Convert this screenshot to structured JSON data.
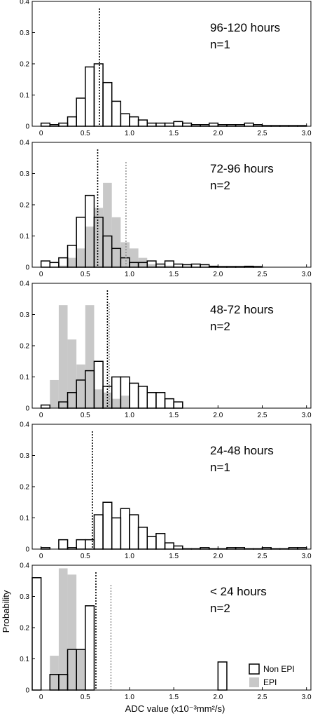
{
  "chart_data": {
    "type": "bar",
    "xlabel": "ADC value (x10⁻³mm²/s)",
    "ylabel": "Probability",
    "xlim": [
      -0.1,
      3.05
    ],
    "ylim": [
      0,
      0.4
    ],
    "bin_width": 0.1,
    "x_ticks": [
      "0",
      "0.5",
      "1.0",
      "1.5",
      "2.0",
      "2.5",
      "3.0"
    ],
    "y_ticks": [
      "0",
      "0.1",
      "0.2",
      "0.3",
      "0.4"
    ],
    "legend": {
      "position": "bottom-right",
      "entries": [
        {
          "label": "Non EPI",
          "color": "#ffffff"
        },
        {
          "label": "EPI",
          "color": "#c8c8c8"
        }
      ]
    },
    "panels": [
      {
        "title": "96-120 hours",
        "n_label": "n=1",
        "nonepi": {
          "x": [
            0,
            0.1,
            0.2,
            0.3,
            0.4,
            0.5,
            0.6,
            0.7,
            0.8,
            0.9,
            1.0,
            1.1,
            1.2,
            1.3,
            1.4,
            1.5,
            1.6,
            1.7,
            1.8,
            1.9,
            2.0,
            2.1,
            2.2,
            2.3,
            2.4,
            2.5,
            2.6,
            2.7,
            2.8,
            2.9
          ],
          "y": [
            0.01,
            0.005,
            0.01,
            0.03,
            0.09,
            0.19,
            0.2,
            0.14,
            0.08,
            0.04,
            0.03,
            0.02,
            0.01,
            0.01,
            0.01,
            0.015,
            0.01,
            0.005,
            0.005,
            0.01,
            0.005,
            0.005,
            0.005,
            0.01,
            0.005,
            0.002,
            0.002,
            0.002,
            0.002,
            0.002
          ]
        },
        "nonepi_mean": 0.66
      },
      {
        "title": "72-96 hours",
        "n_label": "n=2",
        "nonepi": {
          "x": [
            0,
            0.1,
            0.2,
            0.3,
            0.4,
            0.5,
            0.6,
            0.7,
            0.8,
            0.9,
            1.0,
            1.1,
            1.2,
            1.3,
            1.4,
            1.5,
            1.6,
            1.7,
            1.8,
            1.9,
            2.0,
            2.1,
            2.2,
            2.3,
            2.4
          ],
          "y": [
            0.02,
            0.015,
            0.03,
            0.07,
            0.16,
            0.23,
            0.16,
            0.1,
            0.06,
            0.03,
            0.015,
            0.015,
            0.02,
            0.01,
            0.02,
            0.01,
            0.008,
            0.01,
            0.008,
            0.003,
            0.002,
            0.002,
            0.002,
            0.003,
            0.002
          ]
        },
        "epi": {
          "x": [
            0.2,
            0.3,
            0.4,
            0.5,
            0.6,
            0.7,
            0.8,
            0.9,
            1.0,
            1.1,
            1.2,
            1.3,
            1.4,
            1.5,
            1.6,
            1.7
          ],
          "y": [
            0.005,
            0.03,
            0.06,
            0.13,
            0.19,
            0.27,
            0.16,
            0.08,
            0.06,
            0.03,
            0.01,
            0.005,
            0.005,
            0.003,
            0.002,
            0.001
          ]
        },
        "nonepi_mean": 0.64,
        "epi_mean": 0.96
      },
      {
        "title": "48-72 hours",
        "n_label": "n=2",
        "nonepi": {
          "x": [
            0,
            0.2,
            0.3,
            0.4,
            0.5,
            0.6,
            0.7,
            0.8,
            0.9,
            1.0,
            1.1,
            1.2,
            1.3,
            1.4,
            1.5
          ],
          "y": [
            0.01,
            0.02,
            0.05,
            0.09,
            0.12,
            0.15,
            0.07,
            0.1,
            0.1,
            0.08,
            0.07,
            0.05,
            0.05,
            0.03,
            0.02
          ]
        },
        "epi": {
          "x": [
            0.1,
            0.2,
            0.3,
            0.4,
            0.5,
            0.6,
            0.7,
            0.8,
            0.9
          ],
          "y": [
            0.09,
            0.33,
            0.22,
            0.14,
            0.33,
            0.06,
            0.05,
            0.03,
            0.04
          ]
        },
        "nonepi_mean": 0.75,
        "epi_mean": 0.77
      },
      {
        "title": "24-48 hours",
        "n_label": "n=1",
        "nonepi": {
          "x": [
            0,
            0.2,
            0.3,
            0.4,
            0.5,
            0.6,
            0.7,
            0.8,
            0.9,
            1.0,
            1.1,
            1.2,
            1.3,
            1.4,
            1.5,
            1.6,
            1.7,
            1.8,
            1.9,
            2.0,
            2.1,
            2.2,
            2.3,
            2.4,
            2.5,
            2.6,
            2.7,
            2.8,
            2.9
          ],
          "y": [
            0.005,
            0.03,
            0.005,
            0.03,
            0.03,
            0.11,
            0.15,
            0.1,
            0.13,
            0.11,
            0.07,
            0.04,
            0.05,
            0.02,
            0.01,
            0.001,
            0.001,
            0.005,
            0.001,
            0.001,
            0.005,
            0.005,
            0.001,
            0.001,
            0.005,
            0.001,
            0.001,
            0.005,
            0.005
          ]
        },
        "nonepi_mean": 0.58
      },
      {
        "title": "< 24 hours",
        "n_label": "n=2",
        "nonepi": {
          "x": [
            -0.1,
            0.1,
            0.2,
            0.3,
            0.4,
            0.5,
            2.0
          ],
          "y": [
            0.36,
            0.05,
            0.05,
            0.13,
            0.13,
            0.27,
            0.09
          ]
        },
        "epi": {
          "x": [
            0.1,
            0.2,
            0.3,
            0.4
          ],
          "y": [
            0.11,
            0.39,
            0.37,
            0.13
          ]
        },
        "nonepi_mean": 0.62,
        "epi_mean": 0.79
      }
    ]
  }
}
